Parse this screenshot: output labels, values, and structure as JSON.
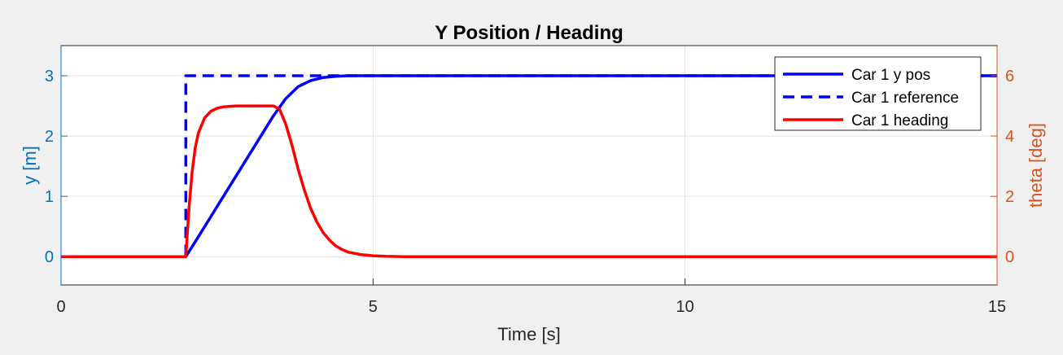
{
  "chart_data": {
    "type": "line",
    "title": "Y Position / Heading",
    "xlabel": "Time [s]",
    "ylabel_left": "y [m]",
    "ylabel_right": "theta [deg]",
    "xlim": [
      0,
      15
    ],
    "ylim_left": [
      -0.47,
      3.5
    ],
    "ylim_right": [
      -0.94,
      7.0
    ],
    "x_ticks": [
      "0",
      "5",
      "10",
      "15"
    ],
    "y_ticks_left": [
      "0",
      "1",
      "2",
      "3"
    ],
    "y_ticks_right": [
      "0",
      "2",
      "4",
      "6"
    ],
    "grid": true,
    "legend_position": "top-right",
    "colors": {
      "left_axis": "#0072bd",
      "right_axis": "#d95319",
      "y_pos": "#0000ff",
      "reference": "#0000ff",
      "heading": "#ff0000"
    },
    "series": [
      {
        "name": "Car 1 y pos",
        "axis": "left",
        "style": "solid",
        "x": [
          0,
          2.0,
          2.2,
          2.5,
          2.8,
          3.1,
          3.4,
          3.6,
          3.8,
          4.0,
          4.2,
          4.4,
          4.6,
          5.0,
          5.5,
          6.0,
          15
        ],
        "y": [
          0,
          0,
          0.33,
          0.83,
          1.33,
          1.83,
          2.33,
          2.62,
          2.82,
          2.92,
          2.97,
          2.99,
          3.0,
          3.0,
          3.0,
          3.0,
          3.0
        ]
      },
      {
        "name": "Car 1 reference",
        "axis": "left",
        "style": "dashed",
        "x": [
          0,
          2.0,
          2.0,
          15
        ],
        "y": [
          0,
          0,
          3,
          3
        ]
      },
      {
        "name": "Car 1 heading",
        "axis": "right",
        "style": "solid",
        "x": [
          0,
          2.0,
          2.05,
          2.1,
          2.15,
          2.2,
          2.3,
          2.4,
          2.5,
          2.6,
          2.8,
          3.0,
          3.2,
          3.4,
          3.5,
          3.6,
          3.7,
          3.8,
          3.9,
          4.0,
          4.1,
          4.2,
          4.3,
          4.4,
          4.5,
          4.6,
          4.8,
          5.0,
          5.2,
          5.5,
          6.0,
          15
        ],
        "y": [
          0,
          0,
          1.6,
          2.8,
          3.6,
          4.1,
          4.6,
          4.82,
          4.92,
          4.97,
          5.0,
          5.0,
          5.0,
          5.0,
          4.9,
          4.4,
          3.7,
          2.9,
          2.2,
          1.6,
          1.15,
          0.8,
          0.55,
          0.36,
          0.24,
          0.15,
          0.07,
          0.03,
          0.01,
          0,
          0,
          0
        ]
      }
    ]
  }
}
